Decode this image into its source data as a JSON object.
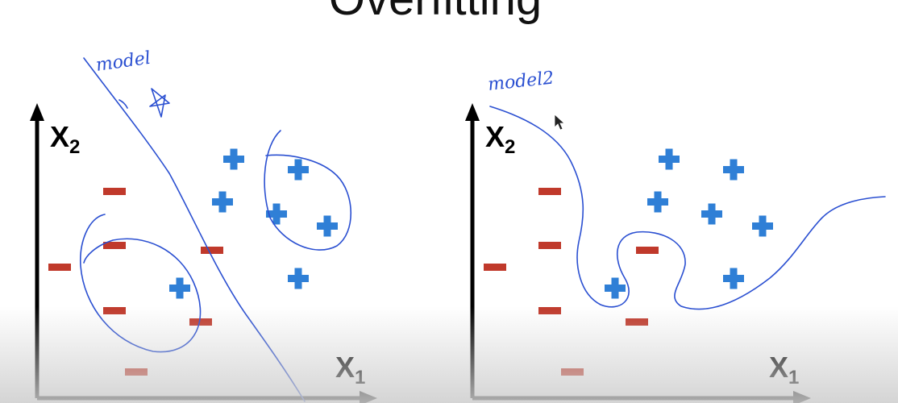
{
  "title": "Overfitting",
  "colors": {
    "axis": "#000000",
    "plus": "#2f7fd6",
    "minus": "#c0392b",
    "ink": "#2a4fd1"
  },
  "panels": [
    {
      "name": "left",
      "annotation": "model",
      "x_label": "X",
      "x_sub": "1",
      "y_label": "X",
      "y_sub": "2"
    },
    {
      "name": "right",
      "annotation": "model2",
      "x_label": "X",
      "x_sub": "1",
      "y_label": "X",
      "y_sub": "2"
    }
  ]
}
